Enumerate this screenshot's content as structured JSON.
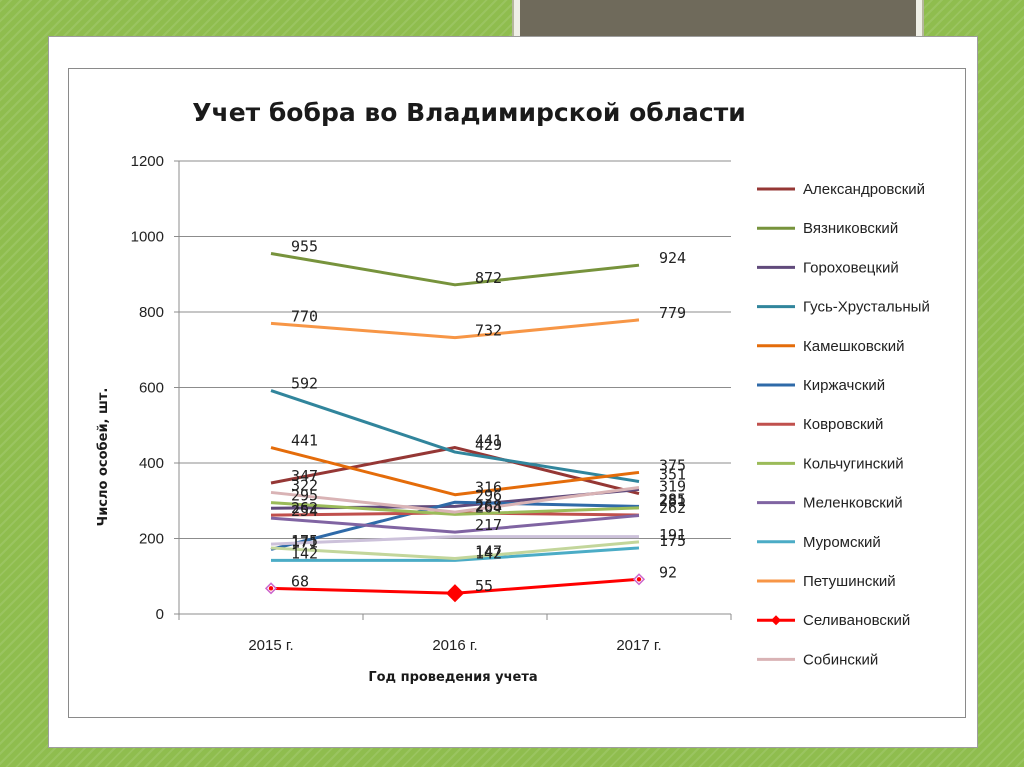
{
  "chart_data": {
    "type": "line",
    "title": "Учет бобра во Владимирской области",
    "xlabel": "Год проведения учета",
    "ylabel": "Число особей, шт.",
    "categories": [
      "2015 г.",
      "2016 г.",
      "2017 г."
    ],
    "ylim": [
      0,
      1200
    ],
    "yticks": [
      0,
      200,
      400,
      600,
      800,
      1000,
      1200
    ],
    "grid": true,
    "legend_position": "right",
    "series": [
      {
        "name": "Александровский",
        "values": [
          347,
          441,
          319
        ],
        "color": "#953735",
        "labels": [
          true,
          true,
          true
        ],
        "marker": false
      },
      {
        "name": "Вязниковский",
        "values": [
          955,
          872,
          924
        ],
        "color": "#77933c",
        "labels": [
          true,
          true,
          true
        ],
        "marker": false
      },
      {
        "name": "Гороховецкий",
        "values": [
          280,
          285,
          330
        ],
        "color": "#604a7b",
        "labels": [
          false,
          false,
          false
        ],
        "marker": false
      },
      {
        "name": "Гусь-Хрустальный",
        "values": [
          592,
          429,
          351
        ],
        "color": "#31859c",
        "labels": [
          true,
          true,
          true
        ],
        "marker": false
      },
      {
        "name": "Камешковский",
        "values": [
          441,
          316,
          375
        ],
        "color": "#e46c0a",
        "labels": [
          true,
          true,
          true
        ],
        "marker": false
      },
      {
        "name": "Киржачский",
        "values": [
          171,
          296,
          285
        ],
        "color": "#2f6aa8",
        "labels": [
          true,
          true,
          true
        ],
        "marker": false
      },
      {
        "name": "Ковровский",
        "values": [
          262,
          268,
          262
        ],
        "color": "#c0504d",
        "labels": [
          true,
          true,
          true
        ],
        "marker": false
      },
      {
        "name": "Кольчугинский",
        "values": [
          295,
          264,
          281
        ],
        "color": "#9bbb59",
        "labels": [
          true,
          true,
          true
        ],
        "marker": false
      },
      {
        "name": "Меленковский",
        "values": [
          254,
          217,
          261
        ],
        "color": "#8064a2",
        "labels": [
          true,
          true,
          false
        ],
        "marker": false
      },
      {
        "name": "Муромский",
        "values": [
          142,
          142,
          175
        ],
        "color": "#4bacc6",
        "labels": [
          true,
          true,
          true
        ],
        "marker": false
      },
      {
        "name": "Петушинский",
        "values": [
          770,
          732,
          779
        ],
        "color": "#f79646",
        "labels": [
          true,
          true,
          true
        ],
        "marker": false
      },
      {
        "name": "Селивановский",
        "values": [
          68,
          55,
          92
        ],
        "color": "#ff0000",
        "labels": [
          true,
          true,
          true
        ],
        "marker": true
      },
      {
        "name": "Собинский",
        "values": [
          322,
          270,
          335
        ],
        "color": "#d9b3b5",
        "labels": [
          true,
          false,
          false
        ],
        "marker": false
      },
      {
        "name": "",
        "values": [
          175,
          147,
          191
        ],
        "color": "#c3d69b",
        "labels": [
          true,
          true,
          true
        ],
        "marker": false,
        "legend": false
      },
      {
        "name": "",
        "values": [
          185,
          205,
          205
        ],
        "color": "#ccc1da",
        "labels": [
          false,
          false,
          false
        ],
        "marker": false,
        "legend": false
      }
    ]
  }
}
